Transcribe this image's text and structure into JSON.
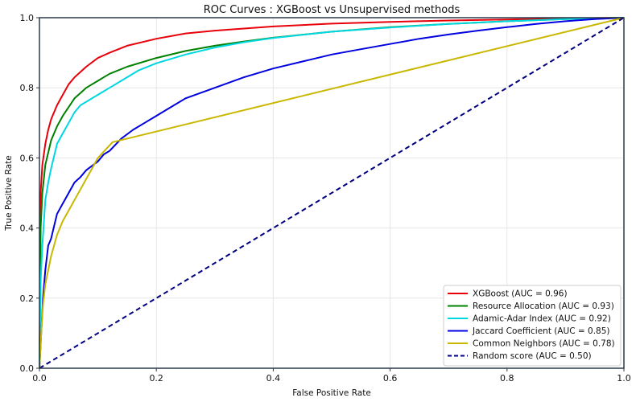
{
  "chart_data": {
    "type": "line",
    "title": "ROC Curves : XGBoost vs Unsupervised methods",
    "xlabel": "False Positive Rate",
    "ylabel": "True Positive Rate",
    "xlim": [
      0,
      1
    ],
    "ylim": [
      0,
      1
    ],
    "xticks": [
      "0.0",
      "0.2",
      "0.4",
      "0.6",
      "0.8",
      "1.0"
    ],
    "yticks": [
      "0.0",
      "0.2",
      "0.4",
      "0.6",
      "0.8",
      "1.0"
    ],
    "grid": true,
    "legend_position": "bottom-right",
    "series": [
      {
        "name": "XGBoost (AUC = 0.96)",
        "color": "#e8000b",
        "dash": false,
        "x": [
          0,
          0.002,
          0.005,
          0.01,
          0.015,
          0.02,
          0.03,
          0.04,
          0.05,
          0.06,
          0.08,
          0.1,
          0.12,
          0.15,
          0.2,
          0.25,
          0.3,
          0.4,
          0.5,
          0.6,
          0.7,
          0.8,
          0.9,
          1.0
        ],
        "y": [
          0,
          0.5,
          0.58,
          0.64,
          0.68,
          0.71,
          0.75,
          0.78,
          0.81,
          0.83,
          0.86,
          0.885,
          0.9,
          0.92,
          0.94,
          0.955,
          0.963,
          0.975,
          0.983,
          0.988,
          0.992,
          0.995,
          0.998,
          1.0
        ]
      },
      {
        "name": "Resource Allocation (AUC = 0.93)",
        "color": "#008000",
        "dash": false,
        "x": [
          0,
          0.002,
          0.005,
          0.01,
          0.02,
          0.03,
          0.04,
          0.05,
          0.06,
          0.08,
          0.1,
          0.12,
          0.15,
          0.2,
          0.25,
          0.3,
          0.35,
          0.4,
          0.5,
          0.6,
          0.7,
          0.8,
          0.9,
          1.0
        ],
        "y": [
          0,
          0.4,
          0.5,
          0.58,
          0.65,
          0.69,
          0.72,
          0.745,
          0.77,
          0.8,
          0.82,
          0.84,
          0.86,
          0.885,
          0.905,
          0.92,
          0.932,
          0.943,
          0.96,
          0.973,
          0.982,
          0.99,
          0.996,
          1.0
        ]
      },
      {
        "name": "Adamic-Adar Index (AUC = 0.92)",
        "color": "#00d7e0",
        "dash": false,
        "x": [
          0,
          0.002,
          0.005,
          0.01,
          0.015,
          0.02,
          0.03,
          0.04,
          0.05,
          0.06,
          0.07,
          0.08,
          0.1,
          0.12,
          0.15,
          0.17,
          0.2,
          0.25,
          0.3,
          0.35,
          0.4,
          0.5,
          0.6,
          0.7,
          0.8,
          0.9,
          1.0
        ],
        "y": [
          0,
          0.25,
          0.35,
          0.48,
          0.53,
          0.57,
          0.64,
          0.67,
          0.7,
          0.73,
          0.75,
          0.76,
          0.78,
          0.8,
          0.83,
          0.85,
          0.87,
          0.895,
          0.915,
          0.93,
          0.942,
          0.96,
          0.972,
          0.982,
          0.99,
          0.996,
          1.0
        ]
      },
      {
        "name": "Jaccard Coefficient (AUC = 0.85)",
        "color": "#0000e0",
        "dash": false,
        "x": [
          0,
          0.003,
          0.006,
          0.01,
          0.015,
          0.02,
          0.03,
          0.04,
          0.05,
          0.06,
          0.07,
          0.08,
          0.1,
          0.11,
          0.12,
          0.14,
          0.16,
          0.18,
          0.2,
          0.22,
          0.25,
          0.3,
          0.35,
          0.4,
          0.45,
          0.5,
          0.55,
          0.6,
          0.65,
          0.7,
          0.75,
          0.8,
          0.85,
          0.9,
          0.95,
          1.0
        ],
        "y": [
          0,
          0.1,
          0.2,
          0.28,
          0.35,
          0.37,
          0.44,
          0.47,
          0.5,
          0.53,
          0.545,
          0.565,
          0.59,
          0.61,
          0.62,
          0.655,
          0.68,
          0.7,
          0.72,
          0.74,
          0.77,
          0.8,
          0.83,
          0.855,
          0.875,
          0.895,
          0.91,
          0.925,
          0.94,
          0.952,
          0.963,
          0.973,
          0.982,
          0.99,
          0.996,
          1.0
        ]
      },
      {
        "name": "Common Neighbors (AUC = 0.78)",
        "color": "#c8b800",
        "dash": false,
        "x": [
          0,
          0.003,
          0.006,
          0.01,
          0.015,
          0.02,
          0.03,
          0.04,
          0.06,
          0.08,
          0.1,
          0.125,
          1.0
        ],
        "y": [
          0,
          0.1,
          0.18,
          0.24,
          0.28,
          0.32,
          0.38,
          0.42,
          0.48,
          0.54,
          0.6,
          0.645,
          1.0
        ]
      },
      {
        "name": "Random score (AUC = 0.50)",
        "color": "#000080",
        "dash": true,
        "x": [
          0,
          1
        ],
        "y": [
          0,
          1
        ]
      }
    ]
  }
}
